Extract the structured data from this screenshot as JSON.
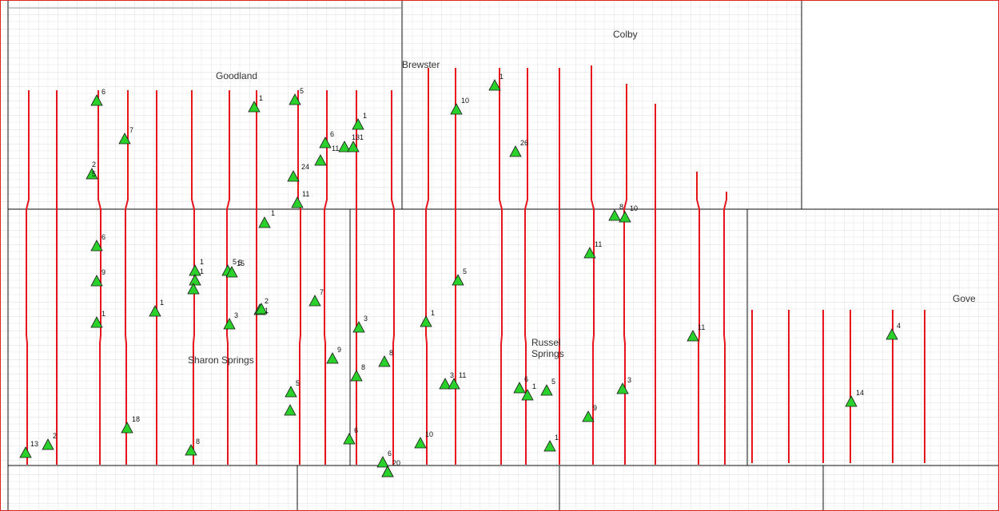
{
  "towns": [
    [
      "Goodland"
    ],
    [
      "Colby"
    ],
    [
      "Brewster"
    ],
    [
      "Sharon Springs"
    ],
    [
      "Russel",
      "Springs"
    ],
    [
      "Gove"
    ]
  ],
  "markers": [
    "6",
    "7",
    "2",
    "5",
    "1",
    "5",
    "1",
    "6",
    "11",
    "13",
    "1",
    "26",
    "10",
    "1",
    "24",
    "11",
    "1",
    "6",
    "9",
    "1",
    "1",
    "5",
    "5",
    "15",
    "2",
    "1",
    "3",
    "1",
    "1",
    "7",
    "3",
    "9",
    "8",
    "8",
    "5",
    "1",
    "5",
    "3",
    "11",
    "6",
    "1",
    "5",
    "11",
    "8",
    "10",
    "11",
    "3",
    "9",
    "1",
    "4",
    "14",
    "18",
    "8",
    "13",
    "2",
    "6",
    "10",
    "6",
    "20"
  ]
}
